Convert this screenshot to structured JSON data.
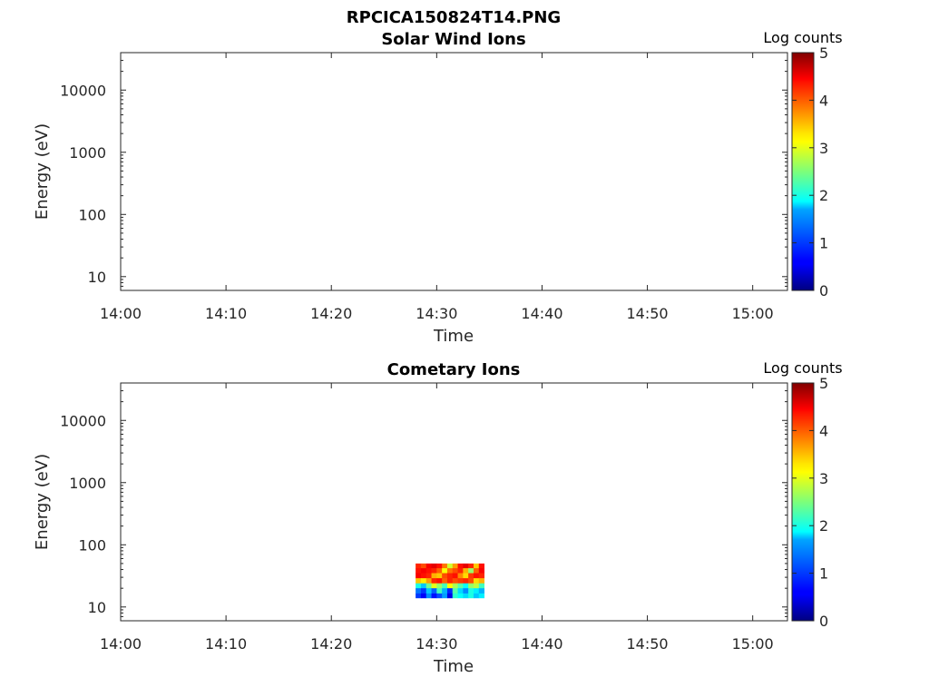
{
  "figure": {
    "title": "RPCICA150824T14.PNG"
  },
  "chart_data": [
    {
      "type": "heatmap",
      "title": "Solar Wind Ions",
      "xlabel": "Time",
      "ylabel": "Energy (eV)",
      "x_ticks": [
        "14:00",
        "14:10",
        "14:20",
        "14:30",
        "14:40",
        "14:50",
        "15:00"
      ],
      "x_range_minutes": [
        0,
        63.3
      ],
      "y_scale": "log",
      "y_ticks": [
        "10",
        "100",
        "1000",
        "10000"
      ],
      "y_range": [
        6,
        40000
      ],
      "colorbar": {
        "label": "Log counts",
        "ticks": [
          "0",
          "1",
          "2",
          "3",
          "4",
          "5"
        ],
        "range": [
          0,
          5
        ]
      },
      "colormap": "jet",
      "cells": []
    },
    {
      "type": "heatmap",
      "title": "Cometary Ions",
      "xlabel": "Time",
      "ylabel": "Energy (eV)",
      "x_ticks": [
        "14:00",
        "14:10",
        "14:20",
        "14:30",
        "14:40",
        "14:50",
        "15:00"
      ],
      "x_range_minutes": [
        0,
        63.3
      ],
      "y_scale": "log",
      "y_ticks": [
        "10",
        "100",
        "1000",
        "10000"
      ],
      "y_range": [
        6,
        40000
      ],
      "colorbar": {
        "label": "Log counts",
        "ticks": [
          "0",
          "1",
          "2",
          "3",
          "4",
          "5"
        ],
        "range": [
          0,
          5
        ]
      },
      "colormap": "jet",
      "cells": {
        "t_start_minutes": 28.0,
        "t_step_minutes": 0.5,
        "energy_bins_eV": [
          [
            42,
            50
          ],
          [
            35,
            42
          ],
          [
            29,
            35
          ],
          [
            24,
            29
          ],
          [
            20,
            24
          ],
          [
            16.5,
            20
          ],
          [
            14,
            16.5
          ]
        ],
        "log_counts_rows": [
          [
            4.2,
            4.0,
            4.4,
            4.5,
            4.3,
            3.8,
            2.9,
            3.6,
            4.3,
            4.5,
            4.2,
            3.4,
            4.3
          ],
          [
            4.3,
            4.4,
            4.3,
            4.2,
            3.9,
            3.1,
            3.8,
            4.0,
            4.2,
            3.5,
            2.6,
            3.9,
            4.4
          ],
          [
            4.4,
            4.3,
            4.2,
            3.5,
            3.4,
            4.0,
            4.2,
            4.3,
            3.7,
            3.3,
            4.1,
            4.3,
            4.2
          ],
          [
            3.4,
            3.2,
            3.6,
            4.2,
            4.3,
            3.9,
            4.2,
            4.0,
            4.1,
            4.2,
            4.0,
            3.3,
            3.5
          ],
          [
            2.0,
            1.6,
            2.4,
            3.0,
            2.6,
            2.2,
            3.1,
            2.7,
            2.3,
            1.9,
            2.6,
            2.8,
            2.2
          ],
          [
            1.2,
            0.9,
            1.6,
            1.1,
            2.2,
            1.5,
            0.8,
            2.3,
            1.7,
            1.3,
            2.0,
            1.8,
            1.5
          ],
          [
            0.9,
            0.6,
            1.3,
            0.7,
            1.0,
            1.4,
            0.5,
            2.1,
            1.9,
            1.7,
            2.0,
            1.6,
            1.8
          ]
        ]
      }
    }
  ]
}
